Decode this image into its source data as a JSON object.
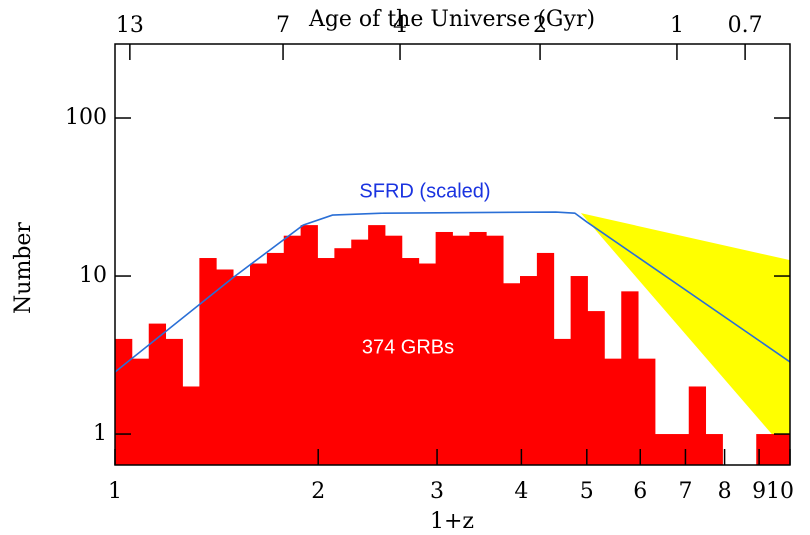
{
  "chart_data": {
    "type": "histogram",
    "xlabel": "1+z",
    "ylabel": "Number",
    "x_log": true,
    "y_log": true,
    "xlim": [
      1,
      10
    ],
    "ylim": [
      0.637,
      294
    ],
    "xticks": [
      1,
      2,
      3,
      4,
      5,
      6,
      7,
      8,
      9,
      10
    ],
    "yticks": [
      1,
      10,
      100
    ],
    "bins": [
      1,
      1.0593,
      1.122,
      1.1885,
      1.2589,
      1.3335,
      1.4125,
      1.4962,
      1.5849,
      1.6788,
      1.7783,
      1.8836,
      1.9953,
      2.1135,
      2.2387,
      2.3714,
      2.5119,
      2.6607,
      2.8184,
      2.9854,
      3.1623,
      3.3497,
      3.5481,
      3.7584,
      3.9811,
      4.217,
      4.4668,
      4.7315,
      5.0119,
      5.3088,
      5.6234,
      5.9566,
      6.3096,
      6.6834,
      7.0795,
      7.4989,
      7.9433,
      8.414,
      8.9125,
      9.4406,
      10
    ],
    "counts": [
      4,
      3,
      5,
      4,
      2,
      13,
      11,
      10,
      12,
      14,
      18,
      21,
      13,
      15,
      17,
      21,
      18,
      13,
      12,
      19,
      18,
      19,
      18,
      9,
      10,
      14,
      4,
      10,
      6,
      3,
      8,
      3,
      1,
      1,
      2,
      1,
      0,
      0,
      1,
      1
    ],
    "color": "#ff0000",
    "line": {
      "name": "SFRD (scaled)",
      "color": "#2a6fd6",
      "x": [
        1,
        1.5,
        1.9,
        2.1,
        2.5,
        4.5,
        4.8,
        5,
        10
      ],
      "y": [
        2.47,
        9.86,
        21,
        24.3,
        25,
        25.4,
        25,
        22,
        2.86
      ]
    },
    "band": {
      "color": "#ffff00",
      "x": [
        4.9,
        10
      ],
      "upper": [
        25,
        12.6
      ],
      "lower": [
        25,
        0.736
      ]
    },
    "top_axis": {
      "label": "Age of the Universe (Gyr)",
      "ticks": [
        13,
        7,
        4,
        2,
        1,
        0.7
      ],
      "positions": [
        1.052,
        1.774,
        2.644,
        4.263,
        6.8,
        8.58
      ]
    },
    "annotation": "374 GRBs"
  }
}
